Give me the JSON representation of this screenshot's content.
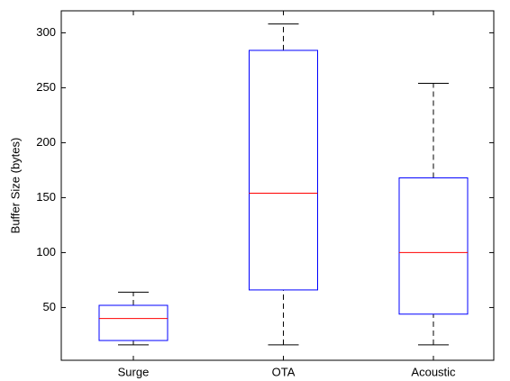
{
  "chart_data": {
    "type": "box",
    "y_label": "Buffer Size (bytes)",
    "categories": [
      "Surge",
      "OTA",
      "Acoustic"
    ],
    "whisker_low": [
      16,
      16,
      16
    ],
    "q1": [
      20,
      66,
      44
    ],
    "median": [
      40,
      154,
      100
    ],
    "q3": [
      52,
      284,
      168
    ],
    "whisker_high": [
      64,
      308,
      254
    ],
    "box_color": "#0000ff",
    "median_color": "#ff0000",
    "whisker_color": "#000000",
    "ylim": [
      2,
      320
    ],
    "yticks": [
      50,
      100,
      150,
      200,
      250,
      300
    ],
    "grid": false
  }
}
